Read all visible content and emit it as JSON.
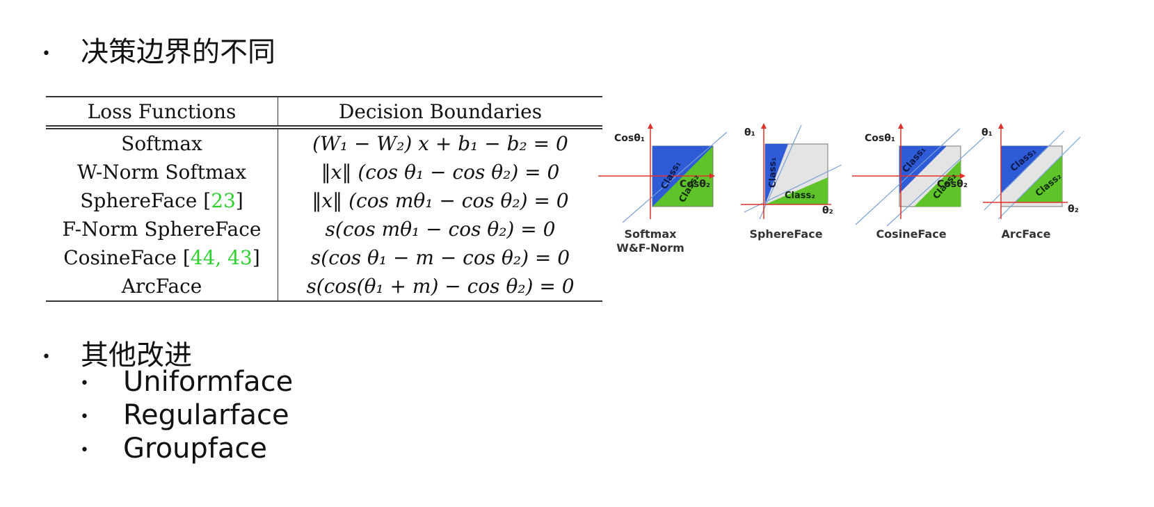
{
  "bullets": {
    "first": "决策边界的不同",
    "second": "其他改进",
    "sub_items": [
      "Uniformface",
      "Regularface",
      "Groupface"
    ]
  },
  "table": {
    "headers": [
      "Loss Functions",
      "Decision Boundaries"
    ],
    "rows": [
      {
        "name": "Softmax",
        "refs": "",
        "formula": "(W₁ − W₂) x + b₁ − b₂ = 0"
      },
      {
        "name": "W-Norm Softmax",
        "refs": "",
        "formula": "‖x‖ (cos θ₁ − cos θ₂) = 0"
      },
      {
        "name": "SphereFace",
        "refs": "23",
        "formula": "‖x‖ (cos mθ₁ − cos θ₂) = 0"
      },
      {
        "name": "F-Norm SphereFace",
        "refs": "",
        "formula": "s(cos mθ₁ − cos θ₂) = 0"
      },
      {
        "name": "CosineFace",
        "refs": "44, 43",
        "formula": "s(cos θ₁ − m − cos θ₂) = 0"
      },
      {
        "name": "ArcFace",
        "refs": "",
        "formula": "s(cos(θ₁ + m) − cos θ₂) = 0"
      }
    ]
  },
  "diagrams": [
    {
      "caption_line1": "Softmax",
      "caption_line2": "W&F-Norm",
      "y_axis": "Cosθ₁",
      "x_axis": "Cosθ₂",
      "class1": "Class₁",
      "class2": "Class₂"
    },
    {
      "caption_line1": "SphereFace",
      "caption_line2": "",
      "y_axis": "θ₁",
      "x_axis": "θ₂",
      "class1": "Class₁",
      "class2": "Class₂"
    },
    {
      "caption_line1": "CosineFace",
      "caption_line2": "",
      "y_axis": "Cosθ₁",
      "x_axis": "Cosθ₂",
      "class1": "Class₁",
      "class2": "Class₂"
    },
    {
      "caption_line1": "ArcFace",
      "caption_line2": "",
      "y_axis": "θ₁",
      "x_axis": "θ₂",
      "class1": "Class₁",
      "class2": "Class₂"
    }
  ],
  "colors": {
    "class1": "#2e5bd6",
    "class2": "#5ec42a",
    "margin": "#e4e4e4",
    "axis": "#e0302a",
    "boundary_line": "#7aa0d8"
  }
}
